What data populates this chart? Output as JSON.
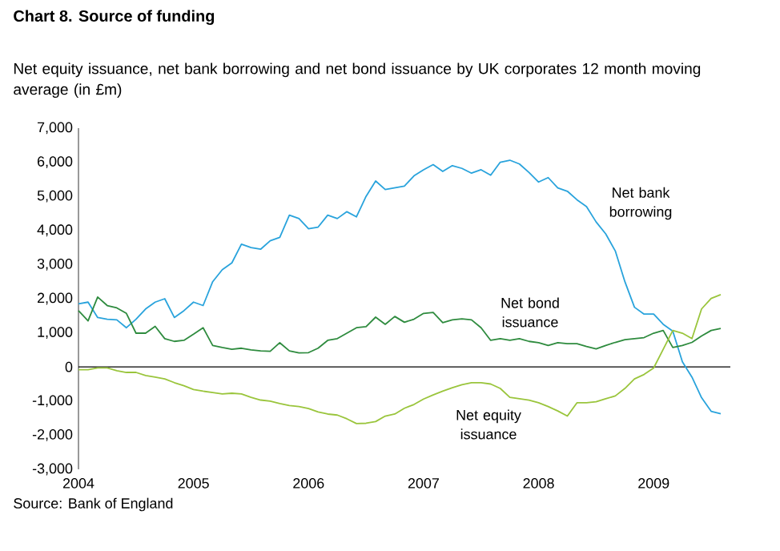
{
  "chart_data": {
    "type": "line",
    "title": "Chart 8. Source of funding",
    "subtitle": "Net equity issuance, net bank borrowing and net bond issuance by UK corporates 12 month moving average (in £m)",
    "x": [
      "2004-01",
      "2004-02",
      "2004-03",
      "2004-04",
      "2004-05",
      "2004-06",
      "2004-07",
      "2004-08",
      "2004-09",
      "2004-10",
      "2004-11",
      "2004-12",
      "2005-01",
      "2005-02",
      "2005-03",
      "2005-04",
      "2005-05",
      "2005-06",
      "2005-07",
      "2005-08",
      "2005-09",
      "2005-10",
      "2005-11",
      "2005-12",
      "2006-01",
      "2006-02",
      "2006-03",
      "2006-04",
      "2006-05",
      "2006-06",
      "2006-07",
      "2006-08",
      "2006-09",
      "2006-10",
      "2006-11",
      "2006-12",
      "2007-01",
      "2007-02",
      "2007-03",
      "2007-04",
      "2007-05",
      "2007-06",
      "2007-07",
      "2007-08",
      "2007-09",
      "2007-10",
      "2007-11",
      "2007-12",
      "2008-01",
      "2008-02",
      "2008-03",
      "2008-04",
      "2008-05",
      "2008-06",
      "2008-07",
      "2008-08",
      "2008-09",
      "2008-10",
      "2008-11",
      "2008-12",
      "2009-01",
      "2009-02",
      "2009-03",
      "2009-04",
      "2009-05",
      "2009-06",
      "2009-07",
      "2009-08"
    ],
    "series": [
      {
        "color": "#29a3dc",
        "values": [
          1850,
          1900,
          1450,
          1400,
          1380,
          1150,
          1400,
          1700,
          1900,
          2000,
          1450,
          1650,
          1900,
          1800,
          2500,
          2850,
          3050,
          3600,
          3500,
          3450,
          3700,
          3800,
          4450,
          4350,
          4050,
          4100,
          4450,
          4350,
          4550,
          4400,
          5000,
          5450,
          5200,
          5250,
          5300,
          5600,
          5780,
          5930,
          5730,
          5900,
          5820,
          5680,
          5780,
          5620,
          6000,
          6060,
          5950,
          5700,
          5420,
          5550,
          5250,
          5150,
          4900,
          4700,
          4250,
          3900,
          3400,
          2500,
          1750,
          1550,
          1550,
          1250,
          1050,
          150,
          -300,
          -900,
          -1300,
          -1370
        ]
      },
      {
        "color": "#2e8b3e",
        "values": [
          1650,
          1350,
          2050,
          1800,
          1730,
          1570,
          990,
          990,
          1190,
          830,
          750,
          780,
          960,
          1150,
          630,
          570,
          520,
          550,
          500,
          470,
          460,
          710,
          470,
          410,
          420,
          550,
          780,
          830,
          990,
          1150,
          1180,
          1460,
          1250,
          1480,
          1310,
          1400,
          1570,
          1600,
          1300,
          1380,
          1410,
          1380,
          1150,
          780,
          830,
          780,
          830,
          750,
          710,
          630,
          710,
          680,
          680,
          600,
          530,
          630,
          720,
          800,
          830,
          860,
          990,
          1070,
          570,
          630,
          720,
          910,
          1070,
          1130
        ]
      },
      {
        "color": "#9ac53c",
        "values": [
          -80,
          -80,
          -30,
          -30,
          -110,
          -160,
          -160,
          -250,
          -300,
          -350,
          -460,
          -550,
          -660,
          -710,
          -750,
          -790,
          -770,
          -790,
          -890,
          -970,
          -1000,
          -1070,
          -1130,
          -1160,
          -1220,
          -1320,
          -1380,
          -1410,
          -1520,
          -1660,
          -1650,
          -1600,
          -1440,
          -1380,
          -1210,
          -1100,
          -940,
          -820,
          -710,
          -610,
          -520,
          -460,
          -460,
          -500,
          -630,
          -890,
          -930,
          -970,
          -1050,
          -1160,
          -1290,
          -1440,
          -1050,
          -1050,
          -1020,
          -930,
          -850,
          -630,
          -350,
          -220,
          -30,
          520,
          1070,
          990,
          830,
          1700,
          2010,
          2120
        ]
      }
    ],
    "xlim": [
      "2004-01",
      "2009-09"
    ],
    "xticks": [
      "2004",
      "2005",
      "2006",
      "2007",
      "2008",
      "2009"
    ],
    "ylim": [
      -3000,
      7000
    ],
    "yticks": [
      {
        "value": -3000,
        "label": "-3,000"
      },
      {
        "value": -2000,
        "label": "-2,000"
      },
      {
        "value": -1000,
        "label": "-1,000"
      },
      0,
      {
        "value": 1000,
        "label": "1,000"
      },
      {
        "value": 2000,
        "label": "2,000"
      },
      {
        "value": 3000,
        "label": "3,000"
      },
      {
        "value": 4000,
        "label": "4,000"
      },
      {
        "value": 5000,
        "label": "5,000"
      },
      {
        "value": 6000,
        "label": "6,000"
      },
      {
        "value": 7000,
        "label": "7,000"
      }
    ],
    "annotations": [
      "Net bank borrowing",
      "Net bond issuance",
      "Net equity issuance",
      "Source: Bank of England"
    ],
    "ref_lines": [
      {
        "axis": "y",
        "value": 0,
        "color": "#000000"
      }
    ],
    "grid": false,
    "marker": "none",
    "line_style": "solid"
  }
}
